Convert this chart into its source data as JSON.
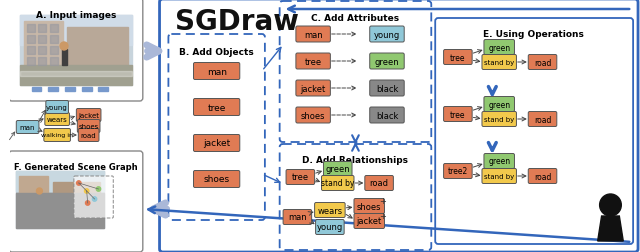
{
  "title": "SGDraw",
  "bg_color": "#ffffff",
  "panel_A_label": "A. Input images",
  "panel_F_label": "F. Generated Scene Graph",
  "panel_B_label": "B. Add Objects",
  "panel_C_label": "C. Add Attributes",
  "panel_D_label": "D. Add Relationships",
  "panel_E_label": "E. Using Operations",
  "orange_color": "#E07B54",
  "yellow_color": "#F2C94C",
  "cyan_color": "#90C8D8",
  "green_color": "#90C870",
  "dark_color": "#333333",
  "blue_border": "#3366BB",
  "objects_B": [
    "man",
    "tree",
    "jacket",
    "shoes"
  ],
  "attributes_C_left": [
    "man",
    "tree",
    "jacket",
    "shoes"
  ],
  "attributes_C_right": [
    "young",
    "green",
    "black",
    "black"
  ],
  "attrs_C_right_colors": [
    "#90C8D8",
    "#90C870",
    "#888888",
    "#888888"
  ]
}
